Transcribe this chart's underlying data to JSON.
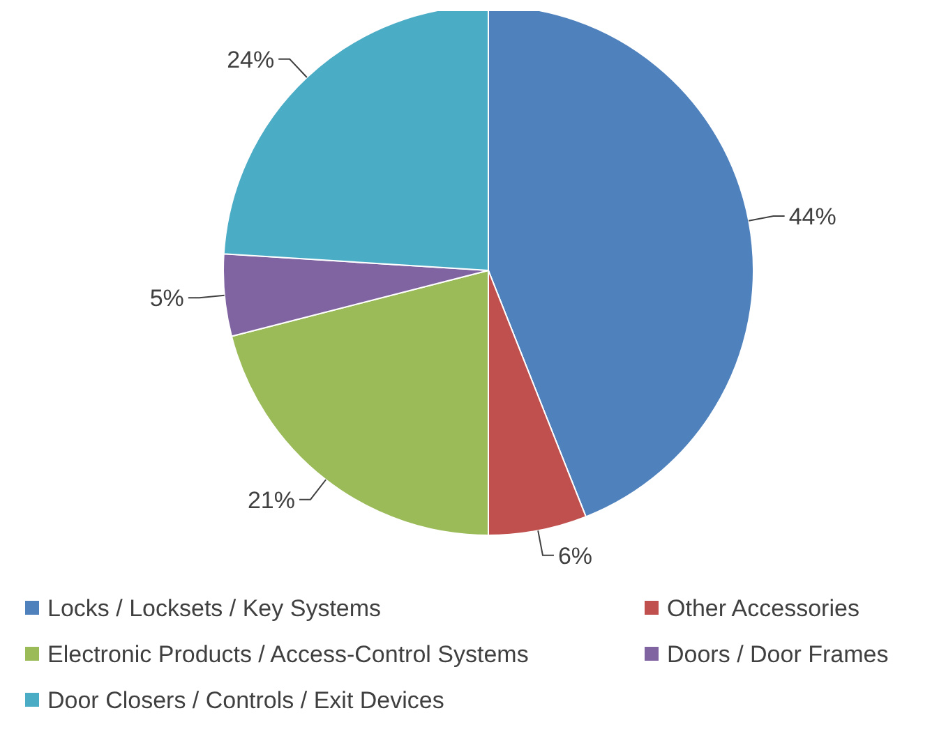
{
  "chart_data": {
    "type": "pie",
    "categories": [
      "Locks / Locksets / Key Systems",
      "Other Accessories",
      "Electronic Products / Access-Control Systems",
      "Doors / Door Frames",
      "Door Closers / Controls / Exit Devices"
    ],
    "values": [
      44,
      6,
      21,
      5,
      24
    ],
    "colors": [
      "#4f81bd",
      "#c0504d",
      "#9bbb59",
      "#8064a2",
      "#4bacc6"
    ],
    "value_labels": [
      "44%",
      "6%",
      "21%",
      "5%",
      "24%"
    ],
    "legend": "bottom"
  }
}
